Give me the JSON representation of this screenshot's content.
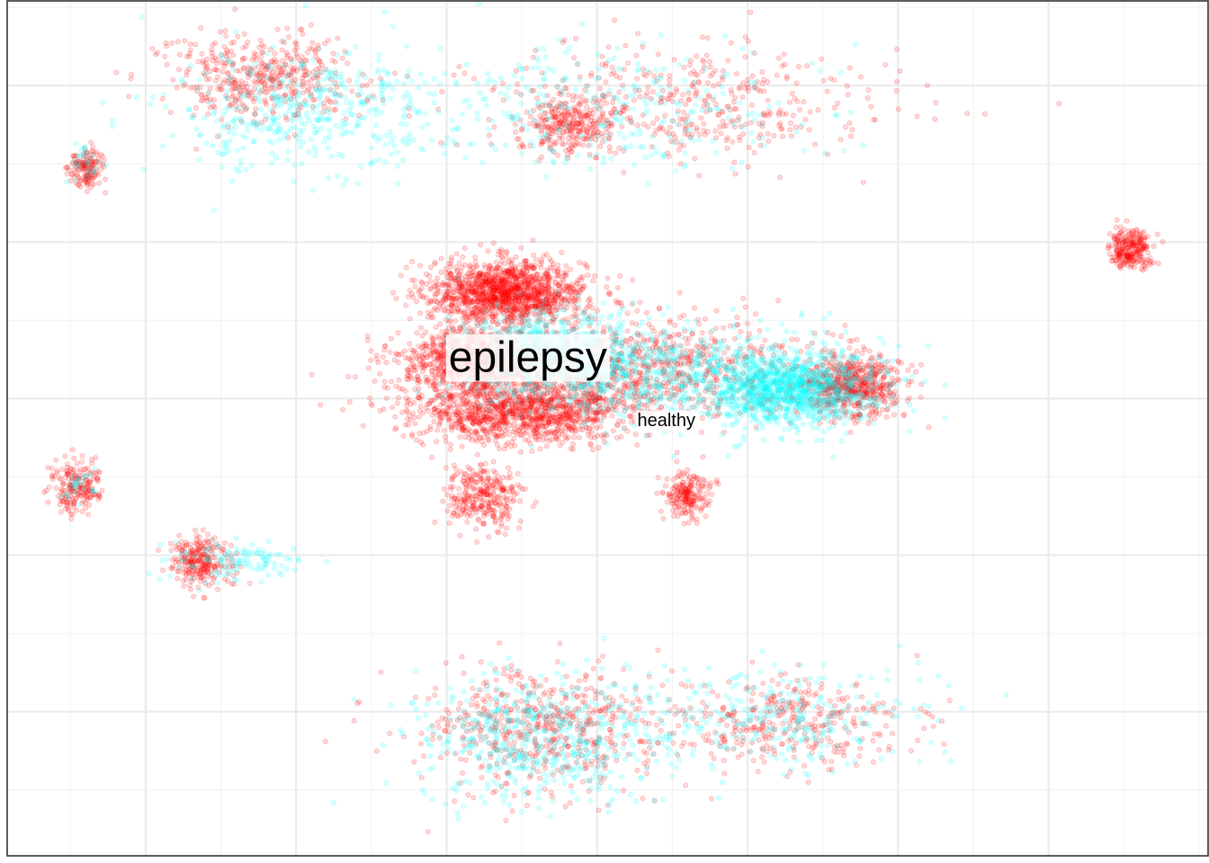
{
  "chart_data": {
    "type": "scatter",
    "title": "",
    "xlabel": "",
    "ylabel": "",
    "grid": true,
    "axis_text_visible": false,
    "legend": "none",
    "x_major_breaks": [
      -15,
      -10,
      -5,
      0,
      5,
      10,
      15
    ],
    "y_major_breaks": [
      -10,
      -5,
      0,
      5,
      10
    ],
    "xlim": [
      -19.6,
      20.3
    ],
    "ylim": [
      -14.6,
      12.7
    ],
    "point_alpha": 0.15,
    "series": [
      {
        "name": "epilepsy",
        "color": "#FF0000",
        "clusters": [
          {
            "center": [
              -3.0,
              3.4
            ],
            "spread": [
              1.3,
              0.5
            ],
            "n": 1400
          },
          {
            "center": [
              -4.1,
              1.2
            ],
            "spread": [
              1.3,
              0.5
            ],
            "n": 900
          },
          {
            "center": [
              -2.5,
              -0.4
            ],
            "spread": [
              1.8,
              0.5
            ],
            "n": 1200
          },
          {
            "center": [
              1.5,
              1.0
            ],
            "spread": [
              3.0,
              0.8
            ],
            "n": 900
          },
          {
            "center": [
              8.5,
              0.4
            ],
            "spread": [
              0.8,
              0.5
            ],
            "n": 600
          },
          {
            "center": [
              -3.8,
              -3.1
            ],
            "spread": [
              0.6,
              0.5
            ],
            "n": 300
          },
          {
            "center": [
              3.0,
              -3.1
            ],
            "spread": [
              0.4,
              0.4
            ],
            "n": 200
          },
          {
            "center": [
              -11.3,
              10.2
            ],
            "spread": [
              1.6,
              0.7
            ],
            "n": 450
          },
          {
            "center": [
              2.6,
              9.4
            ],
            "spread": [
              3.5,
              0.9
            ],
            "n": 450
          },
          {
            "center": [
              -0.9,
              8.7
            ],
            "spread": [
              0.7,
              0.4
            ],
            "n": 250
          },
          {
            "center": [
              -17.0,
              7.4
            ],
            "spread": [
              0.3,
              0.3
            ],
            "n": 150
          },
          {
            "center": [
              17.7,
              4.8
            ],
            "spread": [
              0.35,
              0.3
            ],
            "n": 260
          },
          {
            "center": [
              -17.3,
              -2.8
            ],
            "spread": [
              0.4,
              0.4
            ],
            "n": 200
          },
          {
            "center": [
              -13.2,
              -5.2
            ],
            "spread": [
              0.5,
              0.4
            ],
            "n": 260
          },
          {
            "center": [
              -2.0,
              -10.6
            ],
            "spread": [
              2.0,
              1.0
            ],
            "n": 550
          },
          {
            "center": [
              6.0,
              -10.3
            ],
            "spread": [
              2.2,
              0.7
            ],
            "n": 350
          }
        ]
      },
      {
        "name": "healthy",
        "color": "#00FFFF",
        "clusters": [
          {
            "center": [
              6.3,
              0.3
            ],
            "spread": [
              1.4,
              0.6
            ],
            "n": 1100
          },
          {
            "center": [
              -1.5,
              1.4
            ],
            "spread": [
              1.5,
              0.7
            ],
            "n": 700
          },
          {
            "center": [
              2.5,
              0.7
            ],
            "spread": [
              3.0,
              0.8
            ],
            "n": 700
          },
          {
            "center": [
              -9.5,
              9.2
            ],
            "spread": [
              2.3,
              1.0
            ],
            "n": 450
          },
          {
            "center": [
              0.5,
              9.2
            ],
            "spread": [
              3.5,
              1.0
            ],
            "n": 300
          },
          {
            "center": [
              -12.0,
              -5.2
            ],
            "spread": [
              1.2,
              0.3
            ],
            "n": 120
          },
          {
            "center": [
              -2.0,
              -10.8
            ],
            "spread": [
              2.0,
              1.0
            ],
            "n": 550
          },
          {
            "center": [
              5.5,
              -10.2
            ],
            "spread": [
              2.5,
              0.8
            ],
            "n": 300
          },
          {
            "center": [
              -17.0,
              7.5
            ],
            "spread": [
              0.3,
              0.3
            ],
            "n": 30
          },
          {
            "center": [
              -17.2,
              -2.9
            ],
            "spread": [
              0.3,
              0.3
            ],
            "n": 30
          }
        ]
      }
    ],
    "annotations": [
      {
        "text": "epilepsy",
        "x": -2.3,
        "y": 1.3,
        "size": "large"
      },
      {
        "text": "healthy",
        "x": 2.3,
        "y": -0.7,
        "size": "small"
      }
    ]
  }
}
